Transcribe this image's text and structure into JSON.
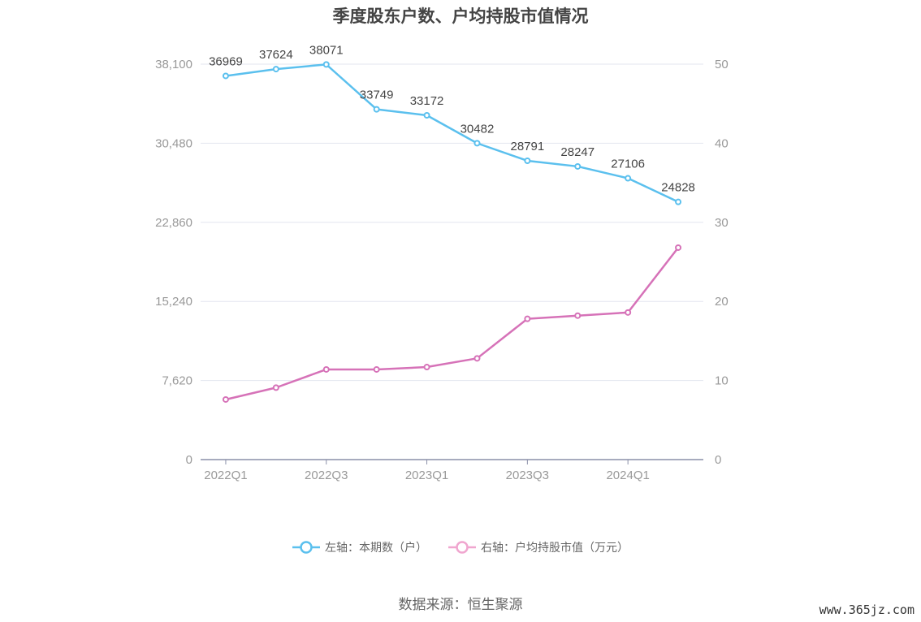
{
  "title": "季度股东户数、户均持股市值情况",
  "source": "数据来源：恒生聚源",
  "watermark": "www.365jz.com",
  "colors": {
    "left_series": "#5bc0ee",
    "right_series": "#d672b8",
    "right_legend": "#f0a6cf",
    "grid": "#e3e6ef",
    "axis": "#8a8fa8"
  },
  "chart_data": {
    "type": "line",
    "categories": [
      "2022Q1",
      "2022Q2",
      "2022Q3",
      "2022Q4",
      "2023Q1",
      "2023Q2",
      "2023Q3",
      "2023Q4",
      "2024Q1",
      "2024Q2"
    ],
    "x_tick_labels": [
      "2022Q1",
      "2022Q3",
      "2023Q1",
      "2023Q3",
      "2024Q1"
    ],
    "left_axis": {
      "ylim": [
        0,
        38100
      ],
      "ticks": [
        "0",
        "7,620",
        "15,240",
        "22,860",
        "30,480",
        "38,100"
      ]
    },
    "right_axis": {
      "ylim": [
        0,
        50
      ],
      "ticks": [
        "0",
        "10",
        "20",
        "30",
        "40",
        "50"
      ]
    },
    "grid": true,
    "legend_position": "bottom",
    "series": [
      {
        "name": "左轴：本期数（户）",
        "axis": "left",
        "values": [
          36969,
          37624,
          38071,
          33749,
          33172,
          30482,
          28791,
          28247,
          27106,
          24828
        ],
        "labels": [
          "36969",
          "37624",
          "38071",
          "33749",
          "33172",
          "30482",
          "28791",
          "28247",
          "27106",
          "24828"
        ]
      },
      {
        "name": "右轴：户均持股市值（万元）",
        "axis": "right",
        "values": [
          7.6,
          9.1,
          11.4,
          11.4,
          11.7,
          12.8,
          17.8,
          18.2,
          18.6,
          26.8
        ]
      }
    ]
  }
}
